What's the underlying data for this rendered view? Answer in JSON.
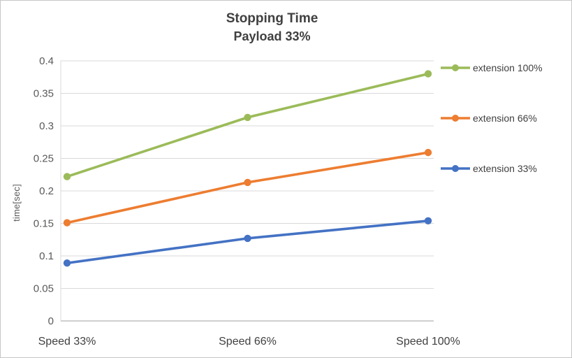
{
  "chart_data": {
    "type": "line",
    "title": "Stopping Time",
    "subtitle": "Payload 33%",
    "xlabel": "",
    "ylabel": "time[sec]",
    "categories": [
      "Speed 33%",
      "Speed 66%",
      "Speed 100%"
    ],
    "ylim": [
      0,
      0.4
    ],
    "ytick_step": 0.05,
    "yticks": [
      0,
      0.05,
      0.1,
      0.15,
      0.2,
      0.25,
      0.3,
      0.35,
      0.4
    ],
    "grid": true,
    "legend_position": "right",
    "series": [
      {
        "name": "extension 100%",
        "color": "#9BBB59",
        "values": [
          0.222,
          0.313,
          0.38
        ]
      },
      {
        "name": "extension 66%",
        "color": "#ED7D31",
        "values": [
          0.151,
          0.213,
          0.259
        ]
      },
      {
        "name": "extension 33%",
        "color": "#4472C4",
        "values": [
          0.089,
          0.127,
          0.154
        ]
      }
    ],
    "colors": {
      "gridline": "#D9D9D9",
      "axis_line": "#BFBFBF",
      "title_text": "#404040",
      "tick_text": "#595959",
      "background": "#FFFFFF"
    }
  }
}
